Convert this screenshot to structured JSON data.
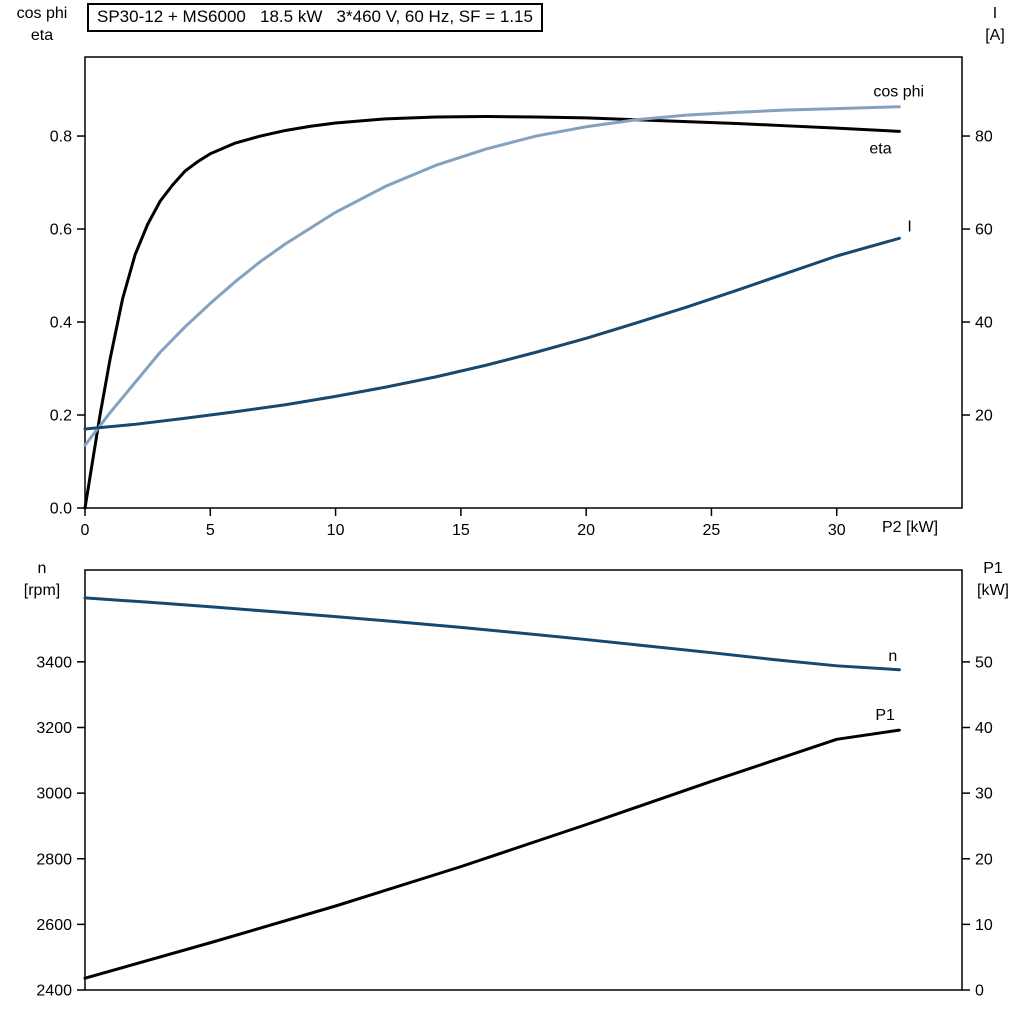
{
  "chart_data": [
    {
      "type": "line",
      "title": "SP30-12 + MS6000   18.5 kW   3*460 V, 60 Hz, SF = 1.15",
      "x_axis": {
        "label": "P2 [kW]",
        "range": [
          0,
          35
        ],
        "ticks": [
          0,
          5,
          10,
          15,
          20,
          25,
          30
        ]
      },
      "y_left": {
        "label": [
          "cos phi",
          "eta"
        ],
        "range": [
          0,
          0.97
        ],
        "ticks": [
          0.0,
          0.2,
          0.4,
          0.6,
          0.8
        ],
        "tick_labels": [
          "0.0",
          "0.2",
          "0.4",
          "0.6",
          "0.8"
        ]
      },
      "y_right": {
        "label": [
          "I",
          "[A]"
        ],
        "range": [
          0,
          97
        ],
        "ticks": [
          20,
          40,
          60,
          80
        ]
      },
      "grid": false,
      "series": [
        {
          "name": "eta",
          "axis": "left",
          "color": "#000000",
          "x": [
            0,
            0.3,
            0.6,
            1,
            1.5,
            2,
            2.5,
            3,
            3.5,
            4,
            4.5,
            5,
            6,
            7,
            8,
            9,
            10,
            12,
            14,
            16,
            18,
            20,
            22,
            24,
            26,
            28,
            30,
            32.5
          ],
          "y": [
            0,
            0.1,
            0.2,
            0.32,
            0.45,
            0.545,
            0.61,
            0.66,
            0.695,
            0.725,
            0.745,
            0.762,
            0.785,
            0.8,
            0.812,
            0.821,
            0.828,
            0.837,
            0.841,
            0.842,
            0.841,
            0.839,
            0.835,
            0.831,
            0.827,
            0.822,
            0.817,
            0.81
          ]
        },
        {
          "name": "cos phi",
          "axis": "left",
          "color": "#84a2bd",
          "x": [
            0,
            0.5,
            1,
            2,
            3,
            4,
            5,
            6,
            7,
            8,
            10,
            12,
            14,
            16,
            18,
            20,
            22,
            24,
            26,
            28,
            30,
            32.5
          ],
          "y": [
            0.135,
            0.17,
            0.205,
            0.27,
            0.335,
            0.39,
            0.44,
            0.487,
            0.53,
            0.568,
            0.636,
            0.692,
            0.737,
            0.772,
            0.8,
            0.82,
            0.835,
            0.845,
            0.851,
            0.856,
            0.859,
            0.863
          ]
        },
        {
          "name": "I",
          "axis": "right",
          "color": "#17486f",
          "x": [
            0,
            2,
            4,
            6,
            8,
            10,
            12,
            14,
            16,
            18,
            20,
            22,
            24,
            26,
            28,
            30,
            32.5
          ],
          "y": [
            17,
            18,
            19.3,
            20.7,
            22.2,
            24,
            26,
            28.2,
            30.7,
            33.5,
            36.5,
            39.8,
            43.2,
            46.8,
            50.5,
            54.2,
            58
          ]
        }
      ]
    },
    {
      "type": "line",
      "title": "",
      "x_axis": {
        "label": "",
        "range": [
          0,
          35
        ],
        "ticks": []
      },
      "y_left": {
        "label": [
          "n",
          "[rpm]"
        ],
        "range": [
          2400,
          3680
        ],
        "ticks": [
          2400,
          2600,
          2800,
          3000,
          3200,
          3400
        ],
        "tick_labels": [
          "2400",
          "2600",
          "2800",
          "3000",
          "3200",
          "3400"
        ]
      },
      "y_right": {
        "label": [
          "P1",
          "[kW]"
        ],
        "range": [
          0,
          64
        ],
        "ticks": [
          0,
          10,
          20,
          30,
          40,
          50
        ]
      },
      "grid": false,
      "series": [
        {
          "name": "n",
          "axis": "left",
          "color": "#17486f",
          "x": [
            0,
            2.5,
            5,
            7.5,
            10,
            12.5,
            15,
            17.5,
            20,
            22.5,
            25,
            27.5,
            30,
            32.5
          ],
          "y": [
            3595,
            3582,
            3568,
            3553,
            3538,
            3522,
            3505,
            3487,
            3468,
            3448,
            3428,
            3407,
            3388,
            3376
          ]
        },
        {
          "name": "P1",
          "axis": "right",
          "color": "#000000",
          "x": [
            0,
            5,
            10,
            15,
            20,
            25,
            30,
            32.5
          ],
          "y": [
            1.8,
            7.2,
            12.8,
            18.8,
            25.2,
            31.8,
            38.2,
            39.6
          ]
        }
      ]
    }
  ]
}
